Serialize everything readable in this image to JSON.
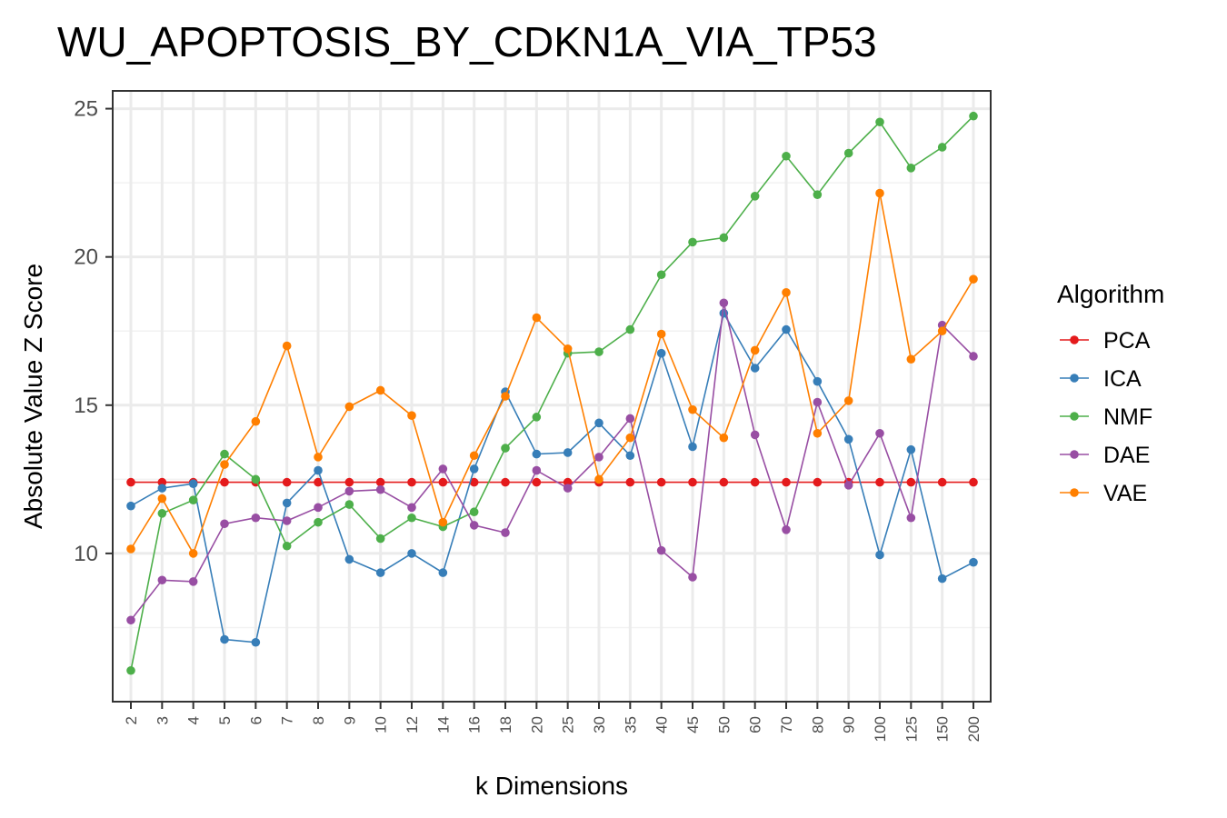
{
  "chart_data": {
    "type": "line",
    "title": "WU_APOPTOSIS_BY_CDKN1A_VIA_TP53",
    "xlabel": "k Dimensions",
    "ylabel": "Absolute Value Z Score",
    "categories": [
      "2",
      "3",
      "4",
      "5",
      "6",
      "7",
      "8",
      "9",
      "10",
      "12",
      "14",
      "16",
      "18",
      "20",
      "25",
      "30",
      "35",
      "40",
      "45",
      "50",
      "60",
      "70",
      "80",
      "90",
      "100",
      "125",
      "150",
      "200"
    ],
    "ylim": [
      5,
      25.6
    ],
    "yticks": [
      10,
      15,
      20,
      25
    ],
    "ytick_labels": [
      "10",
      "15",
      "20",
      "25"
    ],
    "grid": true,
    "legend": {
      "title": "Algorithm",
      "position": "right"
    },
    "series": [
      {
        "name": "PCA",
        "color": "#e41a1c",
        "values": [
          12.4,
          12.4,
          12.4,
          12.4,
          12.4,
          12.4,
          12.4,
          12.4,
          12.4,
          12.4,
          12.4,
          12.4,
          12.4,
          12.4,
          12.4,
          12.4,
          12.4,
          12.4,
          12.4,
          12.4,
          12.4,
          12.4,
          12.4,
          12.4,
          12.4,
          12.4,
          12.4,
          12.4
        ]
      },
      {
        "name": "ICA",
        "color": "#377eb8",
        "values": [
          11.6,
          12.2,
          12.35,
          7.1,
          7.0,
          11.7,
          12.8,
          9.8,
          9.35,
          10.0,
          9.35,
          12.85,
          15.45,
          13.35,
          13.4,
          14.4,
          13.3,
          16.75,
          13.6,
          18.1,
          16.25,
          17.55,
          15.8,
          13.85,
          9.95,
          13.5,
          9.15,
          9.7
        ]
      },
      {
        "name": "NMF",
        "color": "#4daf4a",
        "values": [
          6.05,
          11.35,
          11.8,
          13.35,
          12.5,
          10.25,
          11.05,
          11.65,
          10.5,
          11.2,
          10.9,
          11.4,
          13.55,
          14.6,
          16.75,
          16.8,
          17.55,
          19.4,
          20.5,
          20.65,
          22.05,
          23.4,
          22.1,
          23.5,
          24.55,
          23.0,
          23.7,
          24.75
        ]
      },
      {
        "name": "DAE",
        "color": "#984ea3",
        "values": [
          7.75,
          9.1,
          9.05,
          11.0,
          11.2,
          11.1,
          11.55,
          12.1,
          12.15,
          11.55,
          12.85,
          10.95,
          10.7,
          12.8,
          12.2,
          13.25,
          14.55,
          10.1,
          9.2,
          18.45,
          14.0,
          10.8,
          15.1,
          12.3,
          14.05,
          11.2,
          17.7,
          16.65
        ]
      },
      {
        "name": "VAE",
        "color": "#ff7f00",
        "values": [
          10.15,
          11.85,
          10.0,
          13.0,
          14.45,
          17.0,
          13.25,
          14.95,
          15.5,
          14.65,
          11.05,
          13.3,
          15.3,
          17.95,
          16.9,
          12.5,
          13.9,
          17.4,
          14.85,
          13.9,
          16.85,
          18.8,
          14.05,
          15.15,
          22.15,
          16.55,
          17.5,
          19.25
        ]
      }
    ]
  }
}
